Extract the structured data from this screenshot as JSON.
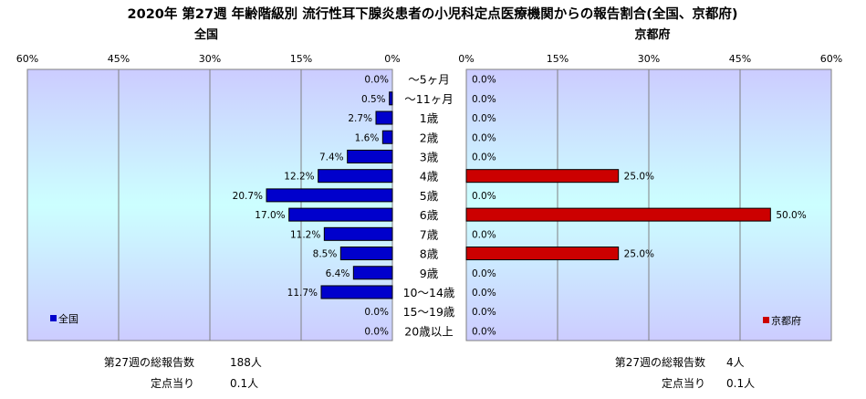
{
  "chart_data": {
    "type": "bar",
    "title": "2020年 第27週 年齢階級別 流行性耳下腺炎患者の小児科定点医療機関からの報告割合(全国、京都府)",
    "categories": [
      "～5ヶ月",
      "～11ヶ月",
      "1歳",
      "2歳",
      "3歳",
      "4歳",
      "5歳",
      "6歳",
      "7歳",
      "8歳",
      "9歳",
      "10～14歳",
      "15～19歳",
      "20歳以上"
    ],
    "series": [
      {
        "name": "全国",
        "color": "#0000cc",
        "values": [
          0.0,
          0.5,
          2.7,
          1.6,
          7.4,
          12.2,
          20.7,
          17.0,
          11.2,
          8.5,
          6.4,
          11.7,
          0.0,
          0.0
        ],
        "labels": [
          "0.0%",
          "0.5%",
          "2.7%",
          "1.6%",
          "7.4%",
          "12.2%",
          "20.7%",
          "17.0%",
          "11.2%",
          "8.5%",
          "6.4%",
          "11.7%",
          "0.0%",
          "0.0%"
        ]
      },
      {
        "name": "京都府",
        "color": "#cc0000",
        "values": [
          0.0,
          0.0,
          0.0,
          0.0,
          0.0,
          25.0,
          0.0,
          50.0,
          0.0,
          25.0,
          0.0,
          0.0,
          0.0,
          0.0
        ],
        "labels": [
          "0.0%",
          "0.0%",
          "0.0%",
          "0.0%",
          "0.0%",
          "25.0%",
          "0.0%",
          "50.0%",
          "0.0%",
          "25.0%",
          "0.0%",
          "0.0%",
          "0.0%",
          "0.0%"
        ]
      }
    ],
    "xlim": [
      0,
      60
    ],
    "ticks": [
      0,
      15,
      30,
      45,
      60
    ],
    "tick_labels": [
      "0%",
      "15%",
      "30%",
      "45%",
      "60%"
    ],
    "panel_titles": {
      "left": "全国",
      "right": "京都府"
    },
    "grid": true,
    "legend": {
      "left": "bottom-left",
      "right": "bottom-right"
    },
    "footer": {
      "left": {
        "total_label": "第27週の総報告数",
        "total_value": "188人",
        "per_label": "定点当り",
        "per_value": "0.1人"
      },
      "right": {
        "total_label": "第27週の総報告数",
        "total_value": "4人",
        "per_label": "定点当り",
        "per_value": "0.1人"
      }
    },
    "colors": {
      "plot_gradient_top": "#ccccff",
      "plot_gradient_mid": "#ccffff",
      "plot_gradient_bottom": "#ccccff",
      "grid": "#808080"
    }
  }
}
